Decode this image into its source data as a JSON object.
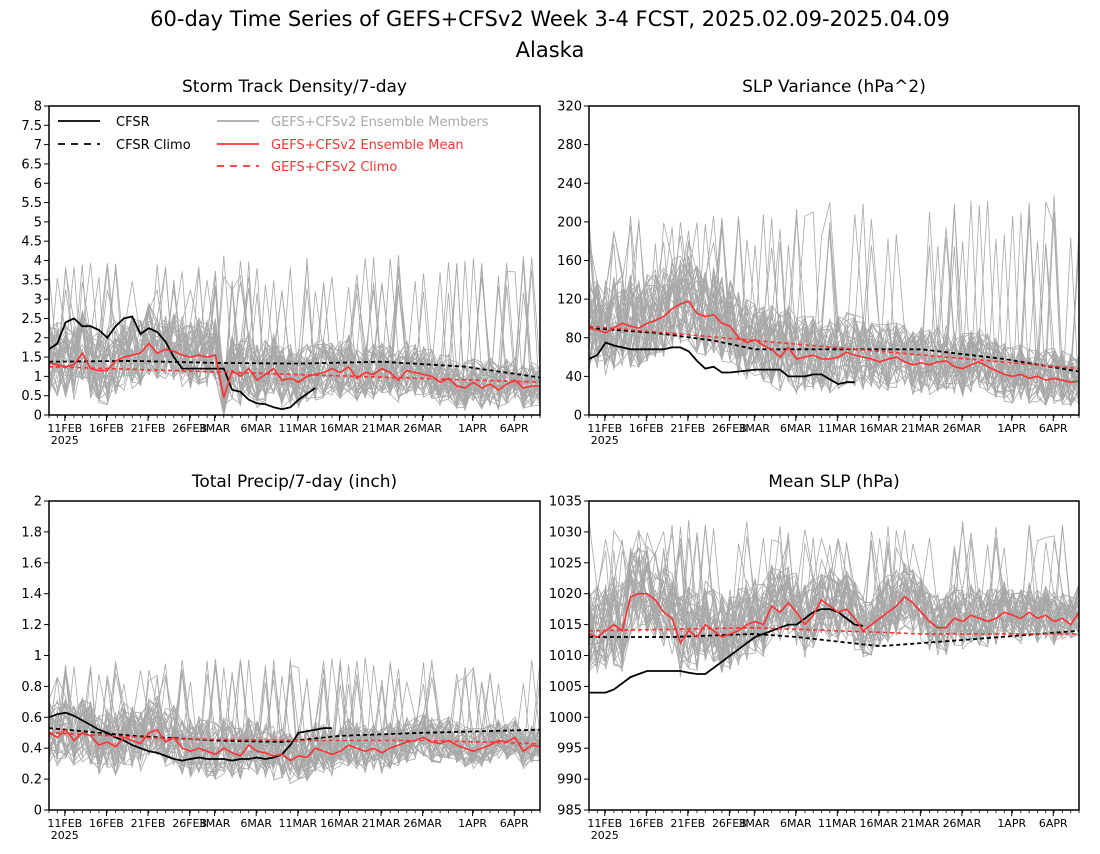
{
  "title_line1": "60-day Time Series of GEFS+CFSv2 Week 3-4 FCST, 2025.02.09-2025.04.09",
  "title_line2": "Alaska",
  "colors": {
    "obs": "#000000",
    "member": "#a8a8a8",
    "mean": "#ff3030",
    "frame": "#000000"
  },
  "legend": {
    "cfsr": "CFSR",
    "cfsr_climo": "CFSR Climo",
    "members": "GEFS+CFSv2 Ensemble Members",
    "ens_mean": "GEFS+CFSv2 Ensemble Mean",
    "gefs_climo": "GEFS+CFSv2 Climo"
  },
  "x_ticks": [
    "11FEB",
    "16FEB",
    "21FEB",
    "26FEB",
    "3MAR",
    "6MAR",
    "11MAR",
    "16MAR",
    "21MAR",
    "26MAR",
    "1APR",
    "6APR"
  ],
  "x_year_label": "2025",
  "chart_data": [
    {
      "type": "line",
      "title": "Storm Track Density/7-day",
      "ylim": [
        0,
        8
      ],
      "yticks": [
        "0",
        "0.5",
        "1",
        "1.5",
        "2",
        "2.5",
        "3",
        "3.5",
        "4",
        "4.5",
        "5",
        "5.5",
        "6",
        "6.5",
        "7",
        "7.5",
        "8"
      ],
      "member_spread": {
        "low": 0.1,
        "high": 3.4
      },
      "series": [
        {
          "name": "CFSR",
          "style": "obs",
          "x": [
            0,
            1,
            2,
            3,
            4,
            5,
            6,
            7,
            8,
            9,
            10,
            11,
            12,
            13,
            14,
            15,
            16,
            17,
            18,
            19,
            20,
            21,
            22,
            23,
            24,
            25,
            26,
            27,
            28,
            29,
            30,
            31,
            32
          ],
          "y": [
            1.7,
            1.85,
            2.4,
            2.5,
            2.3,
            2.3,
            2.2,
            2.0,
            2.3,
            2.5,
            2.55,
            2.1,
            2.25,
            2.15,
            1.9,
            1.5,
            1.2,
            1.2,
            1.2,
            1.2,
            1.2,
            1.2,
            0.65,
            0.6,
            0.4,
            0.3,
            0.28,
            0.2,
            0.15,
            0.2,
            0.4,
            0.55,
            0.7
          ]
        },
        {
          "name": "CFSR Climo",
          "style": "obs-dash",
          "x": [
            0,
            10,
            20,
            30,
            40,
            50,
            59
          ],
          "y": [
            1.38,
            1.4,
            1.35,
            1.33,
            1.38,
            1.25,
            0.97
          ]
        },
        {
          "name": "GEFS+CFSv2 Ensemble Mean",
          "style": "mean",
          "x": [
            0,
            1,
            2,
            3,
            4,
            5,
            6,
            7,
            8,
            9,
            10,
            11,
            12,
            13,
            14,
            15,
            16,
            17,
            18,
            19,
            20,
            21,
            22,
            23,
            24,
            25,
            26,
            27,
            28,
            29,
            30,
            31,
            32,
            33,
            34,
            35,
            36,
            37,
            38,
            39,
            40,
            41,
            42,
            43,
            44,
            45,
            46,
            47,
            48,
            49,
            50,
            51,
            52,
            53,
            54,
            55,
            56,
            57,
            58,
            59
          ],
          "y": [
            1.35,
            1.3,
            1.25,
            1.3,
            1.6,
            1.2,
            1.15,
            1.15,
            1.4,
            1.5,
            1.55,
            1.6,
            1.85,
            1.6,
            1.7,
            1.65,
            1.55,
            1.5,
            1.55,
            1.5,
            1.55,
            0.45,
            1.15,
            1.0,
            1.2,
            0.9,
            1.05,
            1.2,
            0.9,
            0.95,
            0.85,
            1.0,
            1.05,
            1.1,
            1.2,
            1.1,
            1.25,
            0.95,
            1.1,
            1.05,
            1.2,
            1.1,
            0.9,
            1.15,
            1.1,
            1.05,
            1.0,
            0.85,
            0.95,
            0.75,
            0.7,
            0.85,
            0.7,
            0.8,
            0.65,
            0.8,
            0.9,
            0.7,
            0.75,
            0.75
          ]
        },
        {
          "name": "GEFS+CFSv2 Climo",
          "style": "mean-dash",
          "x": [
            0,
            59
          ],
          "y": [
            1.25,
            0.85
          ]
        }
      ]
    },
    {
      "type": "line",
      "title": "SLP Variance (hPa^2)",
      "ylim": [
        0,
        320
      ],
      "yticks": [
        "0",
        "40",
        "80",
        "120",
        "160",
        "200",
        "240",
        "280",
        "320"
      ],
      "member_spread": {
        "low": 25,
        "high": 185
      },
      "series": [
        {
          "name": "CFSR",
          "style": "obs",
          "x": [
            0,
            1,
            2,
            3,
            4,
            5,
            6,
            7,
            8,
            9,
            10,
            11,
            12,
            13,
            14,
            15,
            16,
            17,
            18,
            19,
            20,
            21,
            22,
            23,
            24,
            25,
            26,
            27,
            28,
            29,
            30,
            31,
            32
          ],
          "y": [
            58,
            62,
            75,
            72,
            70,
            68,
            68,
            68,
            68,
            68,
            70,
            70,
            66,
            56,
            48,
            50,
            44,
            44,
            45,
            46,
            47,
            47,
            47,
            47,
            40,
            40,
            40,
            42,
            42,
            37,
            32,
            34,
            34
          ]
        },
        {
          "name": "CFSR Climo",
          "style": "obs-dash",
          "x": [
            0,
            8,
            15,
            20,
            30,
            40,
            50,
            59
          ],
          "y": [
            90,
            85,
            77,
            68,
            68,
            68,
            58,
            45
          ]
        },
        {
          "name": "GEFS+CFSv2 Ensemble Mean",
          "style": "mean",
          "x": [
            0,
            1,
            2,
            3,
            4,
            5,
            6,
            7,
            8,
            9,
            10,
            11,
            12,
            13,
            14,
            15,
            16,
            17,
            18,
            19,
            20,
            21,
            22,
            23,
            24,
            25,
            26,
            27,
            28,
            29,
            30,
            31,
            32,
            33,
            34,
            35,
            36,
            37,
            38,
            39,
            40,
            41,
            42,
            43,
            44,
            45,
            46,
            47,
            48,
            49,
            50,
            51,
            52,
            53,
            54,
            55,
            56,
            57,
            58,
            59
          ],
          "y": [
            90,
            88,
            85,
            90,
            95,
            92,
            90,
            95,
            98,
            102,
            110,
            115,
            118,
            105,
            102,
            104,
            95,
            92,
            80,
            75,
            78,
            72,
            68,
            60,
            70,
            58,
            60,
            62,
            58,
            58,
            60,
            65,
            62,
            60,
            58,
            55,
            58,
            60,
            55,
            52,
            54,
            52,
            55,
            56,
            50,
            48,
            52,
            55,
            50,
            46,
            42,
            40,
            42,
            38,
            40,
            36,
            38,
            36,
            34,
            35
          ]
        },
        {
          "name": "GEFS+CFSv2 Climo",
          "style": "mean-dash",
          "x": [
            0,
            59
          ],
          "y": [
            92,
            48
          ]
        }
      ]
    },
    {
      "type": "line",
      "title": "Total Precip/7-day (inch)",
      "ylim": [
        0,
        2
      ],
      "yticks": [
        "0",
        "0.2",
        "0.4",
        "0.6",
        "0.8",
        "1",
        "1.2",
        "1.4",
        "1.6",
        "1.8",
        "2"
      ],
      "member_spread": {
        "low": 0.15,
        "high": 0.85
      },
      "series": [
        {
          "name": "CFSR",
          "style": "obs",
          "x": [
            0,
            1,
            2,
            3,
            4,
            5,
            6,
            7,
            8,
            9,
            10,
            11,
            12,
            13,
            14,
            15,
            16,
            17,
            18,
            19,
            20,
            21,
            22,
            23,
            24,
            25,
            26,
            27,
            28,
            29,
            30,
            31,
            32,
            33,
            34
          ],
          "y": [
            0.6,
            0.62,
            0.63,
            0.61,
            0.58,
            0.55,
            0.52,
            0.5,
            0.47,
            0.45,
            0.42,
            0.4,
            0.38,
            0.37,
            0.35,
            0.33,
            0.32,
            0.33,
            0.34,
            0.33,
            0.33,
            0.33,
            0.32,
            0.33,
            0.33,
            0.34,
            0.33,
            0.34,
            0.36,
            0.42,
            0.5,
            0.51,
            0.52,
            0.53,
            0.53
          ]
        },
        {
          "name": "CFSR Climo",
          "style": "obs-dash",
          "x": [
            0,
            10,
            20,
            28,
            35,
            45,
            59
          ],
          "y": [
            0.53,
            0.48,
            0.45,
            0.44,
            0.48,
            0.5,
            0.52
          ]
        },
        {
          "name": "GEFS+CFSv2 Ensemble Mean",
          "style": "mean",
          "x": [
            0,
            1,
            2,
            3,
            4,
            5,
            6,
            7,
            8,
            9,
            10,
            11,
            12,
            13,
            14,
            15,
            16,
            17,
            18,
            19,
            20,
            21,
            22,
            23,
            24,
            25,
            26,
            27,
            28,
            29,
            30,
            31,
            32,
            33,
            34,
            35,
            36,
            37,
            38,
            39,
            40,
            41,
            42,
            43,
            44,
            45,
            46,
            47,
            48,
            49,
            50,
            51,
            52,
            53,
            54,
            55,
            56,
            57,
            58,
            59
          ],
          "y": [
            0.5,
            0.47,
            0.52,
            0.45,
            0.5,
            0.48,
            0.42,
            0.44,
            0.41,
            0.47,
            0.45,
            0.43,
            0.5,
            0.52,
            0.44,
            0.47,
            0.4,
            0.38,
            0.4,
            0.38,
            0.36,
            0.4,
            0.37,
            0.35,
            0.42,
            0.38,
            0.37,
            0.35,
            0.36,
            0.32,
            0.35,
            0.34,
            0.4,
            0.38,
            0.36,
            0.38,
            0.42,
            0.4,
            0.38,
            0.4,
            0.37,
            0.4,
            0.42,
            0.44,
            0.45,
            0.47,
            0.44,
            0.43,
            0.45,
            0.42,
            0.4,
            0.38,
            0.4,
            0.42,
            0.45,
            0.44,
            0.47,
            0.38,
            0.42,
            0.41
          ]
        },
        {
          "name": "GEFS+CFSv2 Climo",
          "style": "mean-dash",
          "x": [
            0,
            15,
            30,
            45,
            59
          ],
          "y": [
            0.5,
            0.46,
            0.45,
            0.45,
            0.43
          ]
        }
      ]
    },
    {
      "type": "line",
      "title": "Mean SLP (hPa)",
      "ylim": [
        985,
        1035
      ],
      "yticks": [
        "985",
        "990",
        "995",
        "1000",
        "1005",
        "1010",
        "1015",
        "1020",
        "1025",
        "1030",
        "1035"
      ],
      "member_spread": {
        "low": 1004,
        "high": 1028
      },
      "series": [
        {
          "name": "CFSR",
          "style": "obs",
          "x": [
            0,
            1,
            2,
            3,
            4,
            5,
            6,
            7,
            8,
            9,
            10,
            11,
            12,
            13,
            14,
            15,
            16,
            17,
            18,
            19,
            20,
            21,
            22,
            23,
            24,
            25,
            26,
            27,
            28,
            29,
            30,
            31,
            32,
            33
          ],
          "y": [
            1004,
            1004,
            1004,
            1004.5,
            1005.5,
            1006.5,
            1007,
            1007.5,
            1007.5,
            1007.5,
            1007.5,
            1007.5,
            1007.2,
            1007,
            1007,
            1008,
            1009,
            1010,
            1011,
            1012,
            1013,
            1013.5,
            1014,
            1014.5,
            1015,
            1015,
            1016,
            1017,
            1017.5,
            1017.5,
            1017,
            1016,
            1015,
            1014.8
          ]
        },
        {
          "name": "CFSR Climo",
          "style": "obs-dash",
          "x": [
            0,
            10,
            20,
            25,
            35,
            45,
            59
          ],
          "y": [
            1013,
            1013,
            1013.5,
            1013,
            1011.5,
            1012.5,
            1014
          ]
        },
        {
          "name": "GEFS+CFSv2 Ensemble Mean",
          "style": "mean",
          "x": [
            0,
            1,
            2,
            3,
            4,
            5,
            6,
            7,
            8,
            9,
            10,
            11,
            12,
            13,
            14,
            15,
            16,
            17,
            18,
            19,
            20,
            21,
            22,
            23,
            24,
            25,
            26,
            27,
            28,
            29,
            30,
            31,
            32,
            33,
            34,
            35,
            36,
            37,
            38,
            39,
            40,
            41,
            42,
            43,
            44,
            45,
            46,
            47,
            48,
            49,
            50,
            51,
            52,
            53,
            54,
            55,
            56,
            57,
            58,
            59
          ],
          "y": [
            1013.5,
            1013,
            1014,
            1015,
            1014,
            1019.5,
            1020,
            1020,
            1019,
            1017,
            1016,
            1012,
            1014,
            1013,
            1015,
            1014,
            1013,
            1013.5,
            1014,
            1015,
            1015.5,
            1015,
            1018,
            1017,
            1018.5,
            1017,
            1015,
            1016.5,
            1019,
            1018,
            1017,
            1017.5,
            1016,
            1014,
            1015,
            1016,
            1017,
            1018,
            1019.5,
            1018.5,
            1017,
            1015.5,
            1014.5,
            1014.5,
            1016,
            1015.5,
            1016.5,
            1016,
            1015.5,
            1016,
            1017,
            1016.5,
            1016,
            1017,
            1016,
            1016.5,
            1015.5,
            1016,
            1015,
            1017
          ]
        },
        {
          "name": "GEFS+CFSv2 Climo",
          "style": "mean-dash",
          "x": [
            0,
            20,
            40,
            59
          ],
          "y": [
            1014,
            1014.5,
            1013.5,
            1013.5
          ]
        }
      ]
    }
  ]
}
